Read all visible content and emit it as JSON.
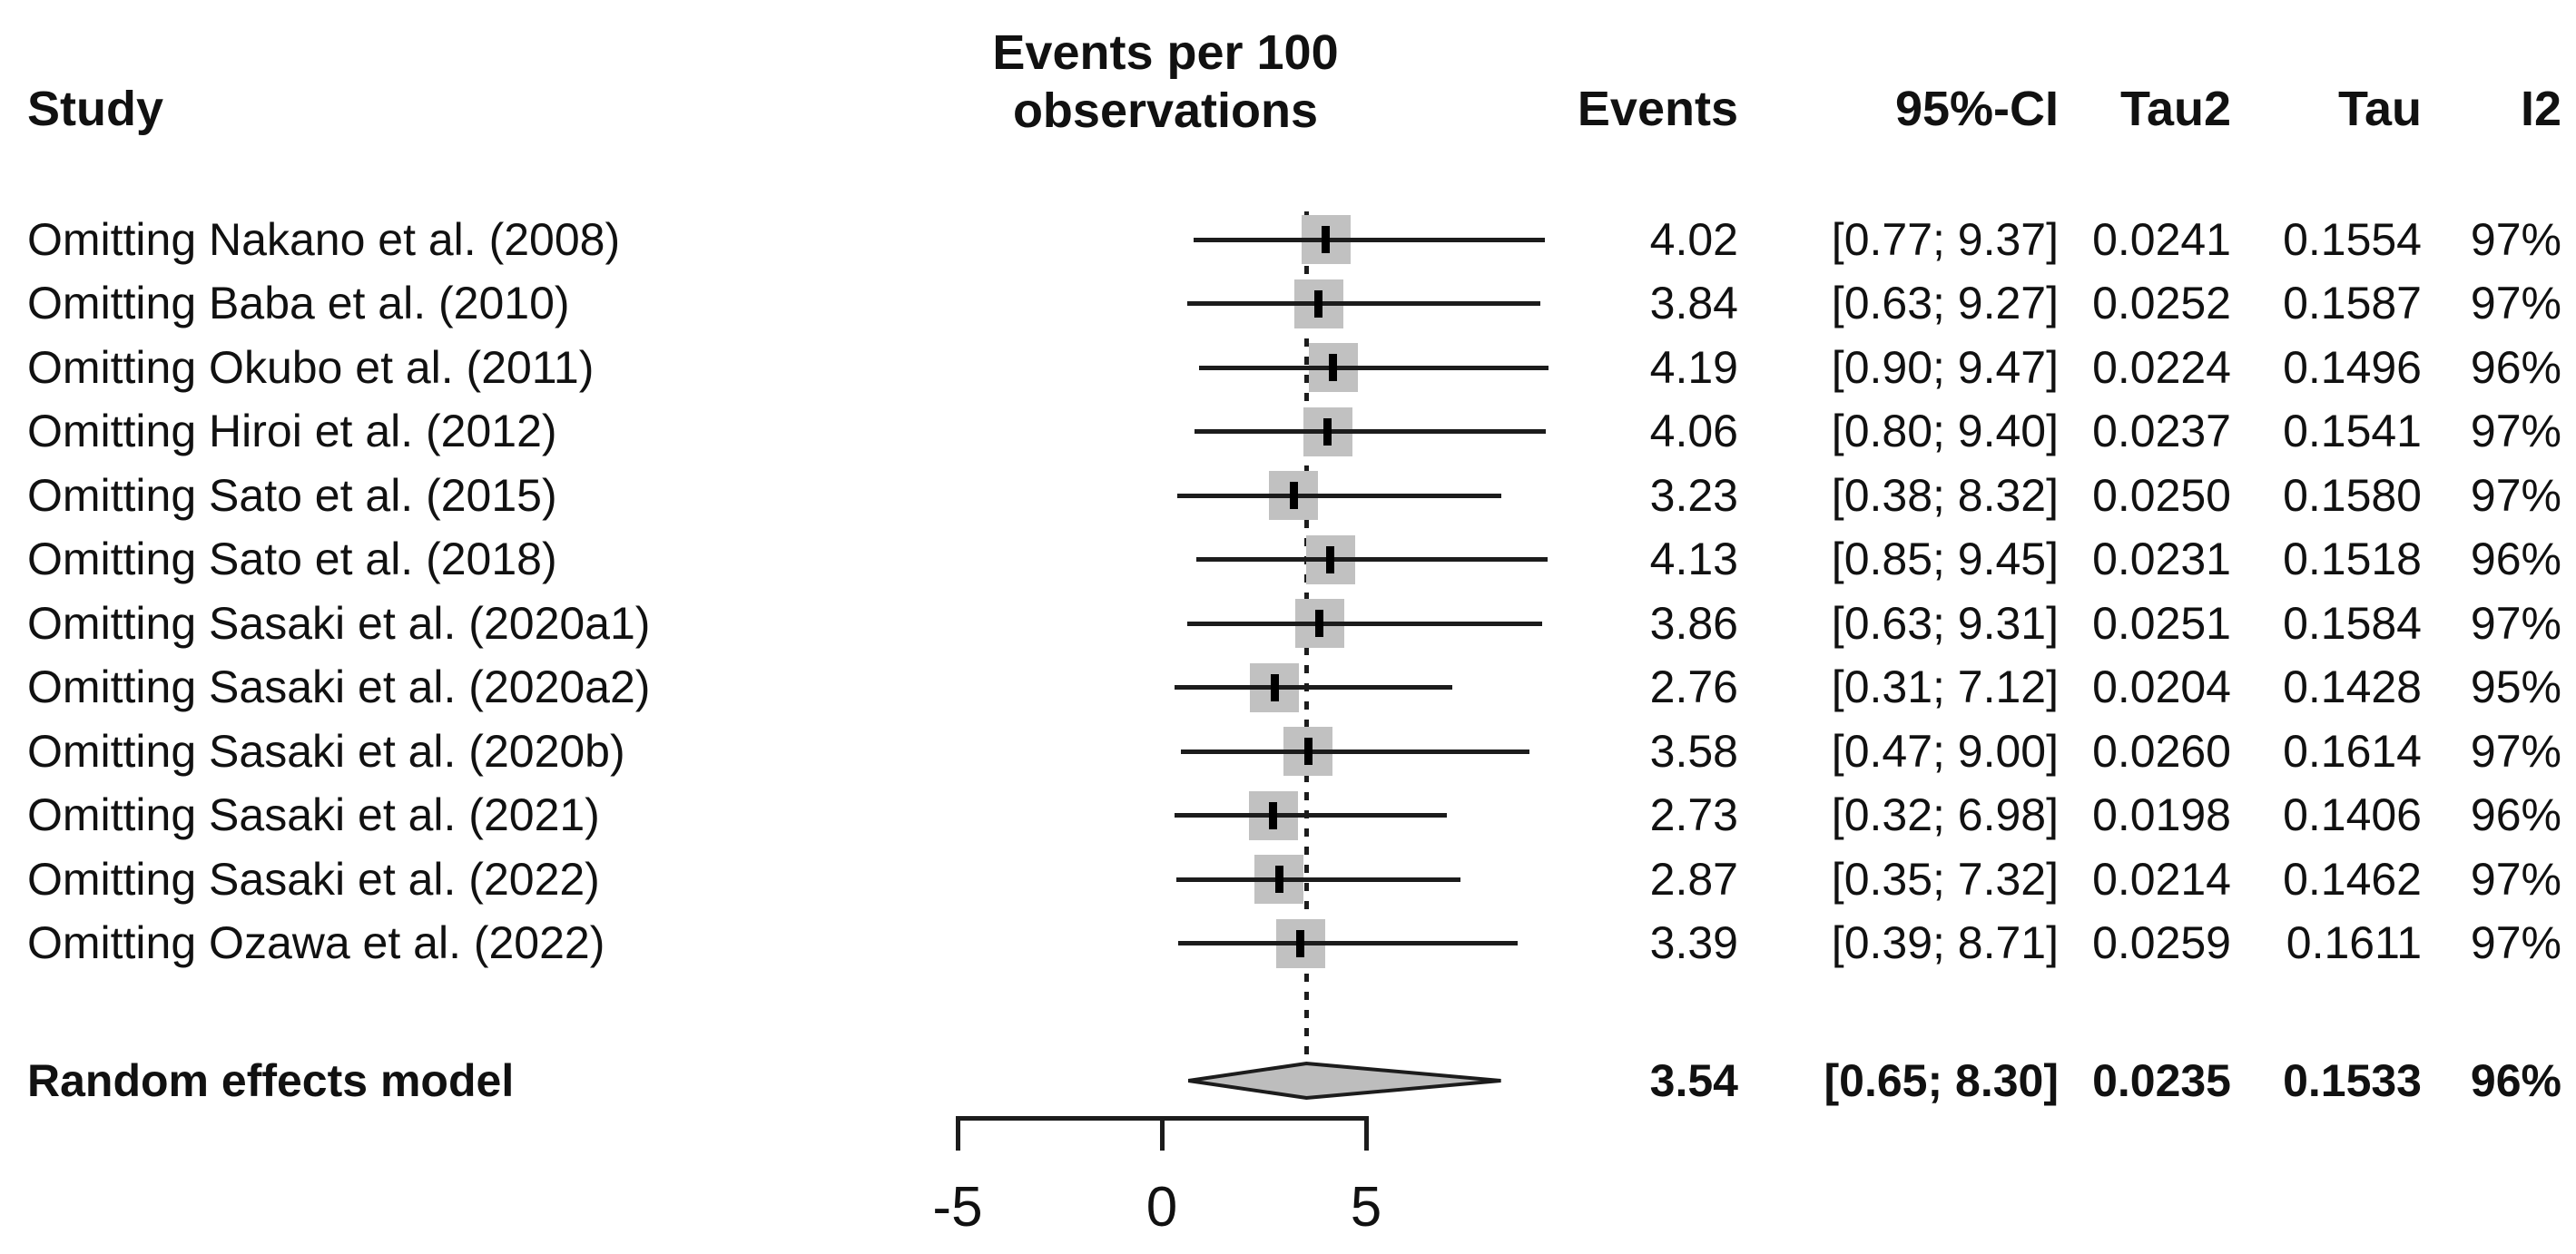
{
  "header": {
    "study": "Study",
    "plot_line1": "Events per 100",
    "plot_line2": "observations",
    "events": "Events",
    "ci": "95%-CI",
    "tau2": "Tau2",
    "tau": "Tau",
    "i2": "I2"
  },
  "colors": {
    "text": "#111111",
    "line": "#1c1c1c",
    "square_fill": "#c1c1c1",
    "diamond_fill": "#bdbdbd",
    "diamond_stroke": "#1c1c1c",
    "axis": "#1c1c1c"
  },
  "chart_data": {
    "type": "forest",
    "title": "Leave-one-out sensitivity analysis, events per 100 observations",
    "x_axis": {
      "ticks": [
        {
          "value": -5,
          "label": "-5"
        },
        {
          "value": 0,
          "label": "0"
        },
        {
          "value": 5,
          "label": "5"
        }
      ],
      "drawn_range": [
        -5,
        5
      ]
    },
    "reference_line": 3.54,
    "rows": [
      {
        "label": "Omitting Nakano et al. (2008)",
        "events": 4.02,
        "events_text": "4.02",
        "ci_low": 0.77,
        "ci_high": 9.37,
        "ci_text": "[0.77; 9.37]",
        "tau2": "0.0241",
        "tau": "0.1554",
        "i2": "97%"
      },
      {
        "label": "Omitting Baba et al. (2010)",
        "events": 3.84,
        "events_text": "3.84",
        "ci_low": 0.63,
        "ci_high": 9.27,
        "ci_text": "[0.63; 9.27]",
        "tau2": "0.0252",
        "tau": "0.1587",
        "i2": "97%"
      },
      {
        "label": "Omitting Okubo et al. (2011)",
        "events": 4.19,
        "events_text": "4.19",
        "ci_low": 0.9,
        "ci_high": 9.47,
        "ci_text": "[0.90; 9.47]",
        "tau2": "0.0224",
        "tau": "0.1496",
        "i2": "96%"
      },
      {
        "label": "Omitting Hiroi et al. (2012)",
        "events": 4.06,
        "events_text": "4.06",
        "ci_low": 0.8,
        "ci_high": 9.4,
        "ci_text": "[0.80; 9.40]",
        "tau2": "0.0237",
        "tau": "0.1541",
        "i2": "97%"
      },
      {
        "label": "Omitting Sato et al. (2015)",
        "events": 3.23,
        "events_text": "3.23",
        "ci_low": 0.38,
        "ci_high": 8.32,
        "ci_text": "[0.38; 8.32]",
        "tau2": "0.0250",
        "tau": "0.1580",
        "i2": "97%"
      },
      {
        "label": "Omitting Sato et al. (2018)",
        "events": 4.13,
        "events_text": "4.13",
        "ci_low": 0.85,
        "ci_high": 9.45,
        "ci_text": "[0.85; 9.45]",
        "tau2": "0.0231",
        "tau": "0.1518",
        "i2": "96%"
      },
      {
        "label": "Omitting Sasaki et al. (2020a1)",
        "events": 3.86,
        "events_text": "3.86",
        "ci_low": 0.63,
        "ci_high": 9.31,
        "ci_text": "[0.63; 9.31]",
        "tau2": "0.0251",
        "tau": "0.1584",
        "i2": "97%"
      },
      {
        "label": "Omitting Sasaki et al. (2020a2)",
        "events": 2.76,
        "events_text": "2.76",
        "ci_low": 0.31,
        "ci_high": 7.12,
        "ci_text": "[0.31; 7.12]",
        "tau2": "0.0204",
        "tau": "0.1428",
        "i2": "95%"
      },
      {
        "label": "Omitting Sasaki et al. (2020b)",
        "events": 3.58,
        "events_text": "3.58",
        "ci_low": 0.47,
        "ci_high": 9.0,
        "ci_text": "[0.47; 9.00]",
        "tau2": "0.0260",
        "tau": "0.1614",
        "i2": "97%"
      },
      {
        "label": "Omitting Sasaki et al. (2021)",
        "events": 2.73,
        "events_text": "2.73",
        "ci_low": 0.32,
        "ci_high": 6.98,
        "ci_text": "[0.32; 6.98]",
        "tau2": "0.0198",
        "tau": "0.1406",
        "i2": "96%"
      },
      {
        "label": "Omitting Sasaki et al. (2022)",
        "events": 2.87,
        "events_text": "2.87",
        "ci_low": 0.35,
        "ci_high": 7.32,
        "ci_text": "[0.35; 7.32]",
        "tau2": "0.0214",
        "tau": "0.1462",
        "i2": "97%"
      },
      {
        "label": "Omitting Ozawa et al. (2022)",
        "events": 3.39,
        "events_text": "3.39",
        "ci_low": 0.39,
        "ci_high": 8.71,
        "ci_text": "[0.39; 8.71]",
        "tau2": "0.0259",
        "tau": "0.1611",
        "i2": "97%"
      }
    ],
    "summary": {
      "label": "Random effects model",
      "events": 3.54,
      "events_text": "3.54",
      "ci_low": 0.65,
      "ci_high": 8.3,
      "ci_text": "[0.65; 8.30]",
      "tau2": "0.0235",
      "tau": "0.1533",
      "i2": "96%"
    }
  }
}
